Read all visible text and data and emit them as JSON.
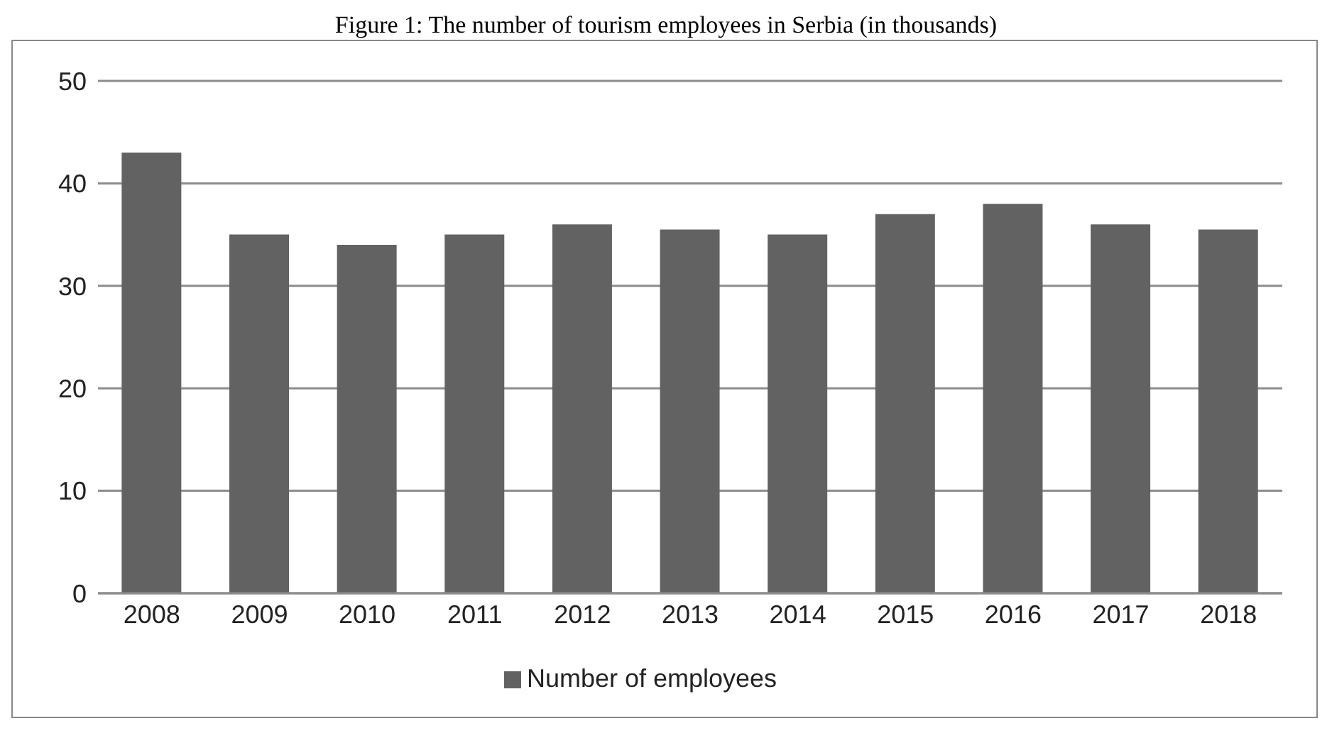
{
  "chart_data": {
    "type": "bar",
    "title": "Figure 1: The number of tourism employees in Serbia (in thousands)",
    "categories": [
      "2008",
      "2009",
      "2010",
      "2011",
      "2012",
      "2013",
      "2014",
      "2015",
      "2016",
      "2017",
      "2018"
    ],
    "series": [
      {
        "name": "Number of employees",
        "color": "#626262",
        "values": [
          43,
          35,
          34,
          35,
          36,
          35.5,
          35,
          37,
          38,
          36,
          35.5
        ]
      }
    ],
    "ylim": [
      0,
      50
    ],
    "yticks": [
      0,
      10,
      20,
      30,
      40,
      50
    ],
    "grid": "y",
    "legend": "bottom"
  }
}
